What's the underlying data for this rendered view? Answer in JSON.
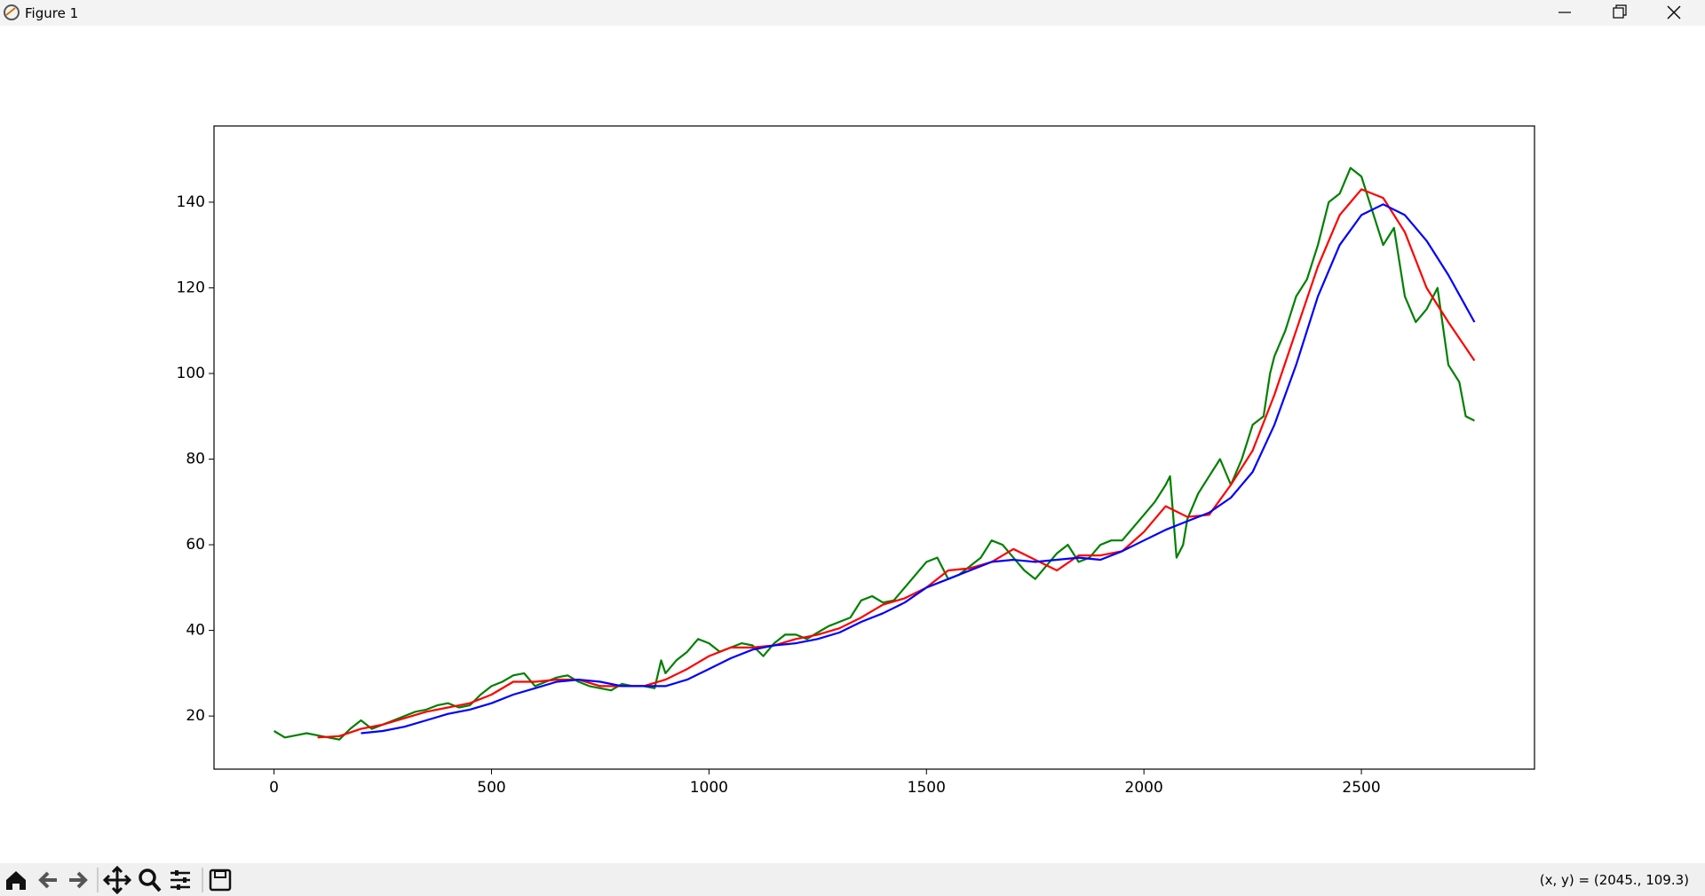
{
  "window": {
    "title": "Figure 1"
  },
  "status": {
    "text": "(x, y) = (2045., 109.3)"
  },
  "chart_data": {
    "type": "line",
    "xlim": [
      -138,
      2898
    ],
    "ylim": [
      7.6,
      157.8
    ],
    "xticks": [
      0,
      500,
      1000,
      1500,
      2000,
      2500
    ],
    "yticks": [
      20,
      40,
      60,
      80,
      100,
      120,
      140
    ],
    "series": [
      {
        "color": "#008000",
        "x": [
          0,
          25,
          50,
          75,
          100,
          125,
          150,
          175,
          200,
          225,
          250,
          275,
          300,
          325,
          350,
          375,
          400,
          425,
          450,
          475,
          500,
          525,
          550,
          575,
          600,
          625,
          650,
          675,
          700,
          725,
          750,
          775,
          800,
          825,
          850,
          875,
          890,
          900,
          925,
          950,
          975,
          1000,
          1025,
          1050,
          1075,
          1100,
          1125,
          1150,
          1175,
          1200,
          1225,
          1250,
          1275,
          1300,
          1325,
          1350,
          1375,
          1400,
          1425,
          1450,
          1475,
          1500,
          1525,
          1550,
          1575,
          1600,
          1625,
          1650,
          1675,
          1700,
          1725,
          1750,
          1775,
          1800,
          1825,
          1850,
          1875,
          1900,
          1925,
          1950,
          1975,
          2000,
          2025,
          2050,
          2060,
          2075,
          2090,
          2100,
          2125,
          2150,
          2175,
          2200,
          2225,
          2250,
          2275,
          2290,
          2300,
          2325,
          2350,
          2375,
          2400,
          2425,
          2450,
          2475,
          2500,
          2525,
          2550,
          2575,
          2600,
          2625,
          2650,
          2675,
          2700,
          2725,
          2740,
          2760
        ],
        "values": [
          16.5,
          15,
          15.5,
          16,
          15.5,
          15,
          14.5,
          17,
          19,
          17,
          18,
          19,
          20,
          21,
          21.5,
          22.5,
          23,
          22,
          22.5,
          25,
          27,
          28,
          29.5,
          30,
          27,
          28,
          29,
          29.5,
          28,
          27,
          26.5,
          26,
          27.5,
          27,
          27,
          26.5,
          33,
          30,
          33,
          35,
          38,
          37,
          35,
          36,
          37,
          36.5,
          34,
          37,
          39,
          39,
          38,
          39.5,
          41,
          42,
          43,
          47,
          48,
          46.5,
          47,
          50,
          53,
          56,
          57,
          52,
          53,
          55,
          57,
          61,
          60,
          57,
          54,
          52,
          55,
          58,
          60,
          56,
          57,
          60,
          61,
          61,
          64,
          67,
          70,
          74,
          76,
          57,
          60,
          66,
          72,
          76,
          80,
          74,
          80,
          88,
          90,
          100,
          104,
          110,
          118,
          122,
          130,
          140,
          142,
          148,
          146,
          138,
          130,
          134,
          118,
          112,
          115,
          120,
          102,
          98,
          90,
          89
        ]
      },
      {
        "color": "#ff0000",
        "x": [
          100,
          150,
          200,
          250,
          300,
          350,
          400,
          450,
          500,
          550,
          600,
          650,
          700,
          750,
          800,
          850,
          900,
          950,
          1000,
          1050,
          1100,
          1150,
          1200,
          1250,
          1300,
          1350,
          1400,
          1450,
          1500,
          1550,
          1600,
          1650,
          1700,
          1750,
          1800,
          1850,
          1900,
          1950,
          2000,
          2050,
          2100,
          2150,
          2200,
          2250,
          2300,
          2350,
          2400,
          2450,
          2500,
          2550,
          2600,
          2650,
          2700,
          2760
        ],
        "values": [
          15,
          15.3,
          17,
          18,
          19.5,
          21,
          22,
          23,
          25,
          28,
          28,
          28.5,
          28.5,
          27,
          27,
          27,
          28.5,
          31,
          34,
          36,
          36,
          36.5,
          38,
          39,
          40.5,
          43,
          46,
          47.5,
          50,
          54,
          54.5,
          56,
          59,
          56.5,
          54,
          57.5,
          57.5,
          58.5,
          63,
          69,
          66.5,
          67,
          74,
          82,
          95,
          110,
          125,
          137,
          143,
          141,
          133,
          120,
          112,
          103
        ]
      },
      {
        "color": "#0000ff",
        "x": [
          200,
          250,
          300,
          350,
          400,
          450,
          500,
          550,
          600,
          650,
          700,
          750,
          800,
          850,
          900,
          950,
          1000,
          1050,
          1100,
          1150,
          1200,
          1250,
          1300,
          1350,
          1400,
          1450,
          1500,
          1550,
          1600,
          1650,
          1700,
          1750,
          1800,
          1850,
          1900,
          1950,
          2000,
          2050,
          2100,
          2150,
          2200,
          2250,
          2300,
          2350,
          2400,
          2450,
          2500,
          2550,
          2600,
          2650,
          2700,
          2760
        ],
        "values": [
          16,
          16.5,
          17.5,
          19,
          20.5,
          21.5,
          23,
          25,
          26.5,
          28,
          28.5,
          28,
          27,
          27,
          27,
          28.5,
          31,
          33.5,
          35.5,
          36.5,
          37,
          38,
          39.5,
          42,
          44,
          46.5,
          50,
          52,
          54,
          56,
          56.5,
          56,
          56.5,
          57,
          56.5,
          58.5,
          61,
          63.5,
          65.5,
          67.5,
          71,
          77,
          88,
          102,
          118,
          130,
          137,
          139.5,
          137,
          131,
          123,
          112
        ]
      }
    ]
  }
}
